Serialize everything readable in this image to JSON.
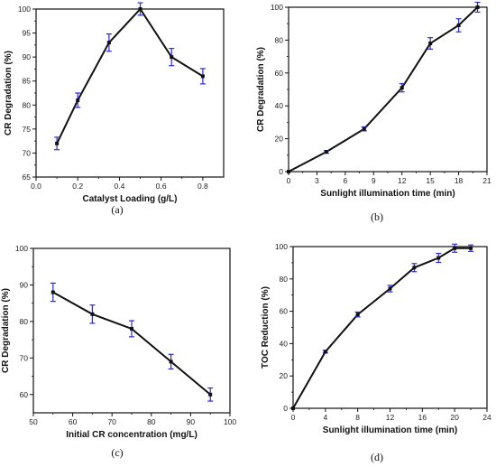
{
  "colors": {
    "line": "#111111",
    "errorbar": "#2b2bd6",
    "axis": "#111111"
  },
  "chart_data": [
    {
      "type": "line",
      "panel_label": "(a)",
      "xlabel": "Catalyst Loading (g/L)",
      "ylabel": "CR Degradation (%)",
      "xlim": [
        0.0,
        0.9
      ],
      "ylim": [
        65,
        100
      ],
      "xticks": [
        "0.0",
        "0.2",
        "0.4",
        "0.6",
        "0.8"
      ],
      "yticks": [
        "65",
        "70",
        "75",
        "80",
        "85",
        "90",
        "95",
        "100"
      ],
      "grid": false,
      "series": [
        {
          "x": [
            0.1,
            0.2,
            0.35,
            0.5,
            0.65,
            0.8
          ],
          "y": [
            72,
            81,
            93,
            100,
            90,
            86
          ],
          "err": [
            1.3,
            1.5,
            1.8,
            1.3,
            1.8,
            1.6
          ]
        }
      ]
    },
    {
      "type": "line",
      "panel_label": "(b)",
      "xlabel": "Sunlight illumination time (min)",
      "ylabel": "CR Degradation (%)",
      "xlim": [
        0,
        21
      ],
      "ylim": [
        0,
        100
      ],
      "xticks": [
        "0",
        "3",
        "6",
        "9",
        "12",
        "15",
        "18",
        "21"
      ],
      "yticks": [
        "0",
        "20",
        "40",
        "60",
        "80",
        "100"
      ],
      "grid": false,
      "series": [
        {
          "x": [
            0,
            4,
            8,
            12,
            15,
            18,
            20
          ],
          "y": [
            0,
            12,
            26,
            51,
            78,
            89,
            100
          ],
          "err": [
            0,
            0.8,
            1.2,
            2.5,
            3.5,
            4,
            3
          ]
        }
      ]
    },
    {
      "type": "line",
      "panel_label": "(c)",
      "xlabel": "Initial CR concentration (mg/L)",
      "ylabel": "CR Degradation (%)",
      "xlim": [
        50,
        100
      ],
      "ylim": [
        55,
        100
      ],
      "xticks": [
        "50",
        "60",
        "70",
        "80",
        "90",
        "100"
      ],
      "yticks": [
        "60",
        "70",
        "80",
        "90",
        "100"
      ],
      "grid": false,
      "series": [
        {
          "x": [
            55,
            65,
            75,
            85,
            95
          ],
          "y": [
            88,
            82,
            78,
            69,
            60
          ],
          "err": [
            2.5,
            2.5,
            2.2,
            2.0,
            1.8
          ]
        }
      ]
    },
    {
      "type": "line",
      "panel_label": "(d)",
      "xlabel": "Sunlight illumination time (min)",
      "ylabel": "TOC Reduction (%)",
      "xlim": [
        0,
        24
      ],
      "ylim": [
        0,
        100
      ],
      "xticks": [
        "0",
        "4",
        "8",
        "12",
        "16",
        "20",
        "24"
      ],
      "yticks": [
        "0",
        "20",
        "40",
        "60",
        "80",
        "100"
      ],
      "grid": false,
      "series": [
        {
          "x": [
            0,
            4,
            8,
            12,
            15,
            18,
            20,
            22
          ],
          "y": [
            0,
            35,
            58,
            74,
            87,
            93,
            99,
            99
          ],
          "err": [
            0,
            0.8,
            1.5,
            2.0,
            2.5,
            2.8,
            2.5,
            2.0
          ]
        }
      ]
    }
  ]
}
